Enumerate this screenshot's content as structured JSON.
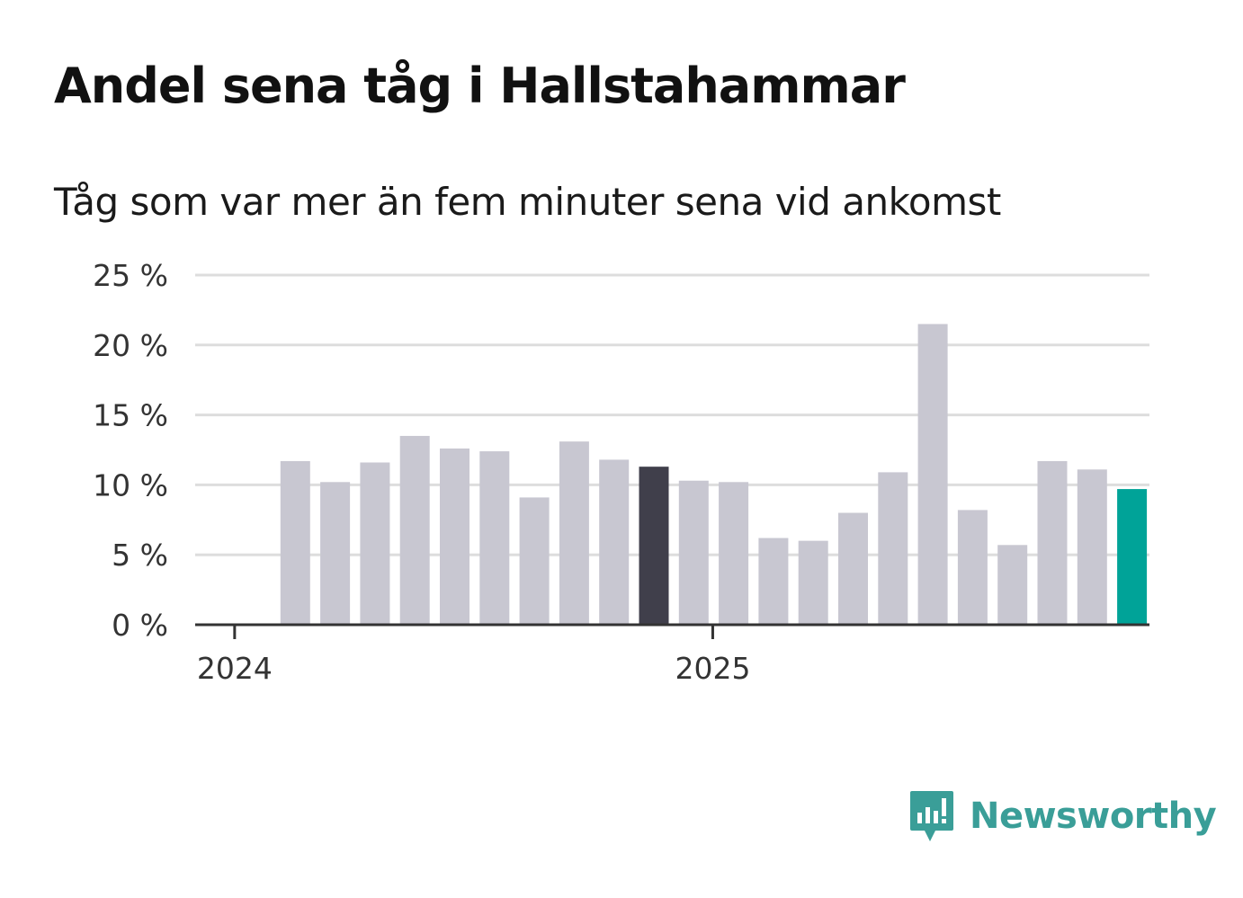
{
  "colors": {
    "bar_default": "#c8c7d1",
    "bar_highlight_dark": "#403f4b",
    "bar_highlight_latest": "#00a398",
    "gridline": "#dddddd",
    "axis": "#333333",
    "brand": "#3a9e98"
  },
  "chart_data": {
    "type": "bar",
    "title": "Andel sena tåg i Hallstahammar",
    "subtitle": "Tåg som var mer än fem minuter sena vid ankomst",
    "xlabel": "",
    "ylabel": "",
    "ylim": [
      0,
      25
    ],
    "yticks": [
      0,
      5,
      10,
      15,
      20,
      25
    ],
    "ytick_labels": [
      "0 %",
      "5 %",
      "10 %",
      "15 %",
      "20 %",
      "25 %"
    ],
    "xtick_labels": [
      {
        "label": "2024",
        "index": 0
      },
      {
        "label": "2025",
        "index": 12
      }
    ],
    "grid": true,
    "legend": "none",
    "categories": [
      "2024-01",
      "2024-02",
      "2024-03",
      "2024-04",
      "2024-05",
      "2024-06",
      "2024-07",
      "2024-08",
      "2024-09",
      "2024-10",
      "2024-11",
      "2024-12",
      "2025-01",
      "2025-02",
      "2025-03",
      "2025-04",
      "2025-05",
      "2025-06",
      "2025-07",
      "2025-08",
      "2025-09",
      "2025-10",
      "2025-11",
      "2025-12"
    ],
    "values": [
      null,
      11.7,
      10.2,
      11.6,
      13.5,
      12.6,
      12.4,
      9.1,
      13.1,
      11.8,
      11.3,
      10.3,
      10.2,
      6.2,
      6.0,
      8.0,
      10.9,
      21.5,
      8.2,
      5.7,
      11.7,
      11.1,
      9.7,
      null
    ],
    "highlight": [
      {
        "index": 10,
        "color_key": "bar_highlight_dark"
      },
      {
        "index": 22,
        "color_key": "bar_highlight_latest"
      }
    ]
  },
  "brand": {
    "name": "Newsworthy",
    "icon": "newsworthy-logo-icon"
  }
}
